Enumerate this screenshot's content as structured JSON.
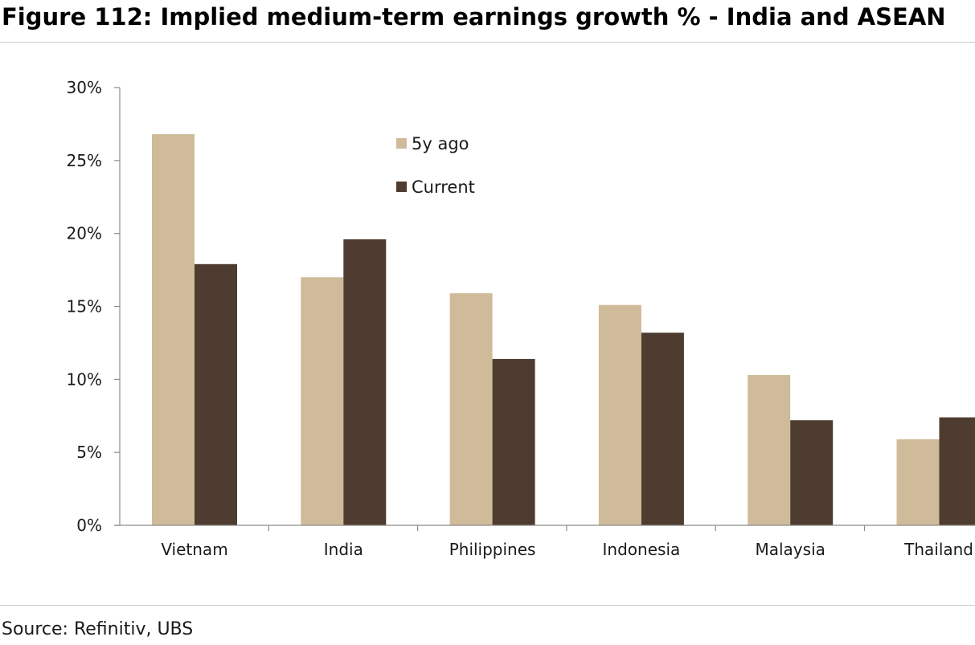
{
  "figure": {
    "title": "Figure 112: Implied medium-term earnings growth % - India and ASEAN",
    "source": "Source: Refinitiv, UBS"
  },
  "chart_data": {
    "type": "bar",
    "title": "Figure 112: Implied medium-term earnings growth % - India and ASEAN",
    "xlabel": "",
    "ylabel": "",
    "categories": [
      "Vietnam",
      "India",
      "Philippines",
      "Indonesia",
      "Malaysia",
      "Thailand"
    ],
    "series": [
      {
        "name": "5y ago",
        "color": "#cfbb99",
        "values": [
          26.8,
          17.0,
          15.9,
          15.1,
          10.3,
          5.9
        ]
      },
      {
        "name": "Current",
        "color": "#4d3c2f",
        "values": [
          17.9,
          19.6,
          11.4,
          13.2,
          7.2,
          7.4
        ]
      }
    ],
    "ylim": [
      0,
      30
    ],
    "yticks": [
      0,
      5,
      10,
      15,
      20,
      25,
      30
    ],
    "ytick_labels": [
      "0%",
      "5%",
      "10%",
      "15%",
      "20%",
      "25%",
      "30%"
    ],
    "grid": false,
    "legend_position": "top-center"
  }
}
